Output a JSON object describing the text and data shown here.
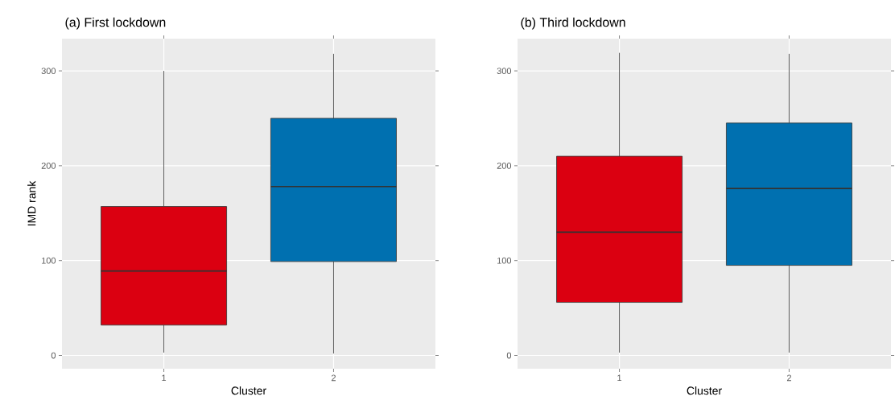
{
  "chart_data": [
    {
      "type": "box",
      "title": "(a) First lockdown",
      "xlabel": "Cluster",
      "ylabel": "IMD rank",
      "categories": [
        "1",
        "2"
      ],
      "colors": [
        "#db0011",
        "#0070b0"
      ],
      "boxes": [
        {
          "low": 3,
          "q1": 32,
          "median": 89,
          "q3": 157,
          "high": 300
        },
        {
          "low": 2,
          "q1": 99,
          "median": 178,
          "q3": 250,
          "high": 318
        }
      ],
      "ylim": [
        -14,
        334
      ],
      "yticks": [
        0,
        100,
        200,
        300
      ],
      "grid": true
    },
    {
      "type": "box",
      "title": "(b) Third lockdown",
      "xlabel": "Cluster",
      "categories": [
        "1",
        "2"
      ],
      "colors": [
        "#db0011",
        "#0070b0"
      ],
      "boxes": [
        {
          "low": 3,
          "q1": 56,
          "median": 130,
          "q3": 210,
          "high": 319
        },
        {
          "low": 3,
          "q1": 95,
          "median": 176,
          "q3": 245,
          "high": 318
        }
      ],
      "ylim": [
        -14,
        334
      ],
      "yticks": [
        0,
        100,
        200,
        300
      ],
      "grid": true
    }
  ]
}
